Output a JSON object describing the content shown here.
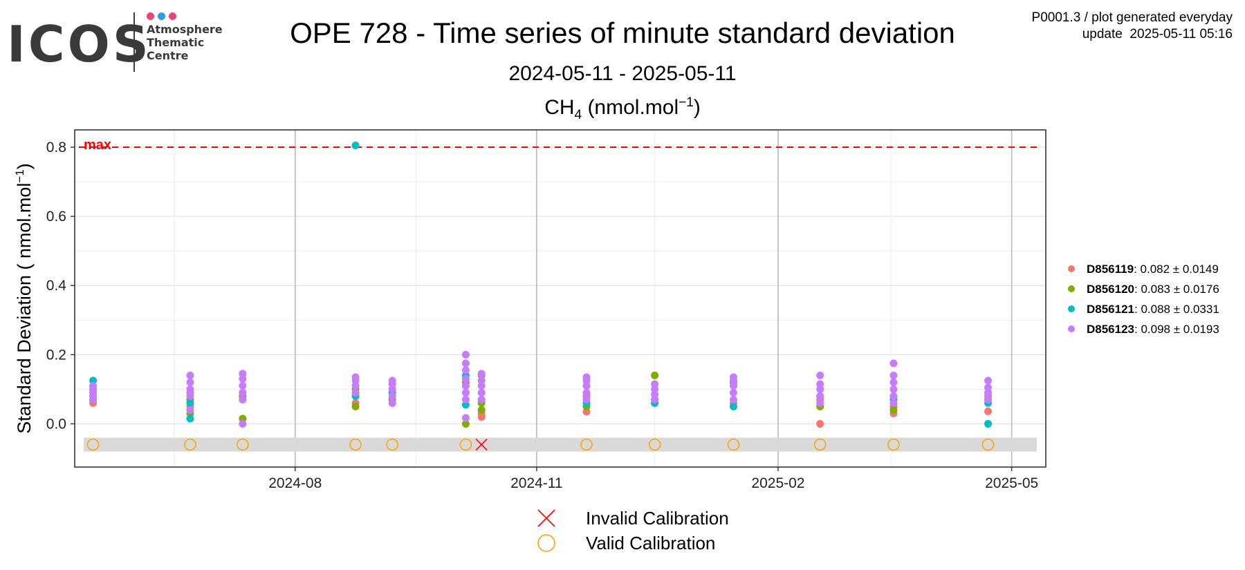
{
  "header": {
    "logo_text": "ICOS",
    "logo_subtitle": "Atmosphere\nThematic\nCentre",
    "logo_dot_colors": [
      "#e8457c",
      "#2f9ee0",
      "#e8457c"
    ],
    "title": "OPE 728 - Time series of minute standard deviation",
    "date_range": "2024-05-11 - 2025-05-11",
    "gas_name": "CH",
    "gas_subscript": "4",
    "gas_unit_pre": " (nmol.mol",
    "gas_unit_sup": "−1",
    "gas_unit_post": ")",
    "meta_line1": "P0001.3 / plot generated everyday",
    "meta_line2": "update  2025-05-11 05:16"
  },
  "chart_data": {
    "type": "scatter",
    "ylabel": "Standard Deviation ( nmol.mol",
    "ylabel_sup": "−1",
    "ylabel_post": ")",
    "ylim": [
      -0.125,
      0.85
    ],
    "xlim": [
      "2024-05-09",
      "2025-05-14"
    ],
    "y_ticks": [
      0.0,
      0.2,
      0.4,
      0.6,
      0.8
    ],
    "y_tick_labels": [
      "0.0",
      "0.2",
      "0.4",
      "0.6",
      "0.8"
    ],
    "x_major_ticks": [
      "2024-08-01",
      "2024-11-01",
      "2025-02-01",
      "2025-05-01"
    ],
    "x_tick_labels": [
      "2024-08",
      "2024-11",
      "2025-02",
      "2025-05"
    ],
    "x_minor_ticks": [
      "2024-06-16",
      "2024-09-16",
      "2024-12-16",
      "2025-03-16"
    ],
    "grid": true,
    "max_threshold": 0.8,
    "max_label": "max",
    "max_color": "#ff0000",
    "calibration_band": [
      -0.08,
      -0.04
    ],
    "calibration_y": -0.06,
    "series": [
      {
        "name": "D856119",
        "stats": ": 0.082 ± 0.0149",
        "color": "#F8766D",
        "points": [
          {
            "x": "2024-05-16",
            "y": 0.06
          },
          {
            "x": "2024-05-16",
            "y": 0.08
          },
          {
            "x": "2024-06-22",
            "y": 0.05
          },
          {
            "x": "2024-06-22",
            "y": 0.09
          },
          {
            "x": "2024-07-12",
            "y": 0.07
          },
          {
            "x": "2024-08-24",
            "y": 0.06
          },
          {
            "x": "2024-08-24",
            "y": 0.09
          },
          {
            "x": "2024-09-07",
            "y": 0.06
          },
          {
            "x": "2024-10-05",
            "y": 0.09
          },
          {
            "x": "2024-10-11",
            "y": 0.02
          },
          {
            "x": "2024-10-11",
            "y": 0.03
          },
          {
            "x": "2024-11-20",
            "y": 0.035
          },
          {
            "x": "2024-11-20",
            "y": 0.08
          },
          {
            "x": "2024-12-16",
            "y": 0.06
          },
          {
            "x": "2025-01-15",
            "y": 0.06
          },
          {
            "x": "2025-02-17",
            "y": 0.0
          },
          {
            "x": "2025-02-17",
            "y": 0.07
          },
          {
            "x": "2025-03-17",
            "y": 0.03
          },
          {
            "x": "2025-03-17",
            "y": 0.05
          },
          {
            "x": "2025-04-22",
            "y": 0.036
          },
          {
            "x": "2025-04-22",
            "y": 0.08
          }
        ]
      },
      {
        "name": "D856120",
        "stats": ": 0.083 ± 0.0176",
        "color": "#7CAE00",
        "points": [
          {
            "x": "2024-05-16",
            "y": 0.07
          },
          {
            "x": "2024-05-16",
            "y": 0.1
          },
          {
            "x": "2024-06-22",
            "y": 0.03
          },
          {
            "x": "2024-06-22",
            "y": 0.07
          },
          {
            "x": "2024-07-12",
            "y": 0.015
          },
          {
            "x": "2024-07-12",
            "y": 0.08
          },
          {
            "x": "2024-08-24",
            "y": 0.05
          },
          {
            "x": "2024-08-24",
            "y": 0.1
          },
          {
            "x": "2024-09-07",
            "y": 0.07
          },
          {
            "x": "2024-10-05",
            "y": 0.0
          },
          {
            "x": "2024-10-05",
            "y": 0.12
          },
          {
            "x": "2024-10-11",
            "y": 0.04
          },
          {
            "x": "2024-10-11",
            "y": 0.06
          },
          {
            "x": "2024-10-11",
            "y": 0.14
          },
          {
            "x": "2024-11-20",
            "y": 0.05
          },
          {
            "x": "2024-12-16",
            "y": 0.14
          },
          {
            "x": "2024-12-16",
            "y": 0.07
          },
          {
            "x": "2025-01-15",
            "y": 0.12
          },
          {
            "x": "2025-02-17",
            "y": 0.05
          },
          {
            "x": "2025-03-17",
            "y": 0.04
          },
          {
            "x": "2025-04-22",
            "y": 0.07
          }
        ]
      },
      {
        "name": "D856121",
        "stats": ": 0.088 ± 0.0331",
        "color": "#00BFC4",
        "points": [
          {
            "x": "2024-05-16",
            "y": 0.125
          },
          {
            "x": "2024-05-16",
            "y": 0.09
          },
          {
            "x": "2024-06-22",
            "y": 0.015
          },
          {
            "x": "2024-06-22",
            "y": 0.06
          },
          {
            "x": "2024-07-12",
            "y": 0.09
          },
          {
            "x": "2024-08-24",
            "y": 0.805
          },
          {
            "x": "2024-08-24",
            "y": 0.08
          },
          {
            "x": "2024-09-07",
            "y": 0.09
          },
          {
            "x": "2024-10-05",
            "y": 0.055
          },
          {
            "x": "2024-10-05",
            "y": 0.14
          },
          {
            "x": "2024-10-11",
            "y": 0.07
          },
          {
            "x": "2024-11-20",
            "y": 0.06
          },
          {
            "x": "2024-12-16",
            "y": 0.06
          },
          {
            "x": "2025-01-15",
            "y": 0.05
          },
          {
            "x": "2025-02-17",
            "y": 0.08
          },
          {
            "x": "2025-03-17",
            "y": 0.07
          },
          {
            "x": "2025-04-22",
            "y": 0.0
          },
          {
            "x": "2025-04-22",
            "y": 0.06
          }
        ]
      },
      {
        "name": "D856123",
        "stats": ": 0.098 ± 0.0193",
        "color": "#C77CFF",
        "points": [
          {
            "x": "2024-05-16",
            "y": 0.07
          },
          {
            "x": "2024-05-16",
            "y": 0.08
          },
          {
            "x": "2024-05-16",
            "y": 0.09
          },
          {
            "x": "2024-05-16",
            "y": 0.1
          },
          {
            "x": "2024-05-16",
            "y": 0.11
          },
          {
            "x": "2024-06-22",
            "y": 0.04
          },
          {
            "x": "2024-06-22",
            "y": 0.08
          },
          {
            "x": "2024-06-22",
            "y": 0.1
          },
          {
            "x": "2024-06-22",
            "y": 0.12
          },
          {
            "x": "2024-06-22",
            "y": 0.14
          },
          {
            "x": "2024-07-12",
            "y": 0.0
          },
          {
            "x": "2024-07-12",
            "y": 0.07
          },
          {
            "x": "2024-07-12",
            "y": 0.09
          },
          {
            "x": "2024-07-12",
            "y": 0.11
          },
          {
            "x": "2024-07-12",
            "y": 0.13
          },
          {
            "x": "2024-07-12",
            "y": 0.145
          },
          {
            "x": "2024-08-24",
            "y": 0.09
          },
          {
            "x": "2024-08-24",
            "y": 0.11
          },
          {
            "x": "2024-08-24",
            "y": 0.125
          },
          {
            "x": "2024-08-24",
            "y": 0.135
          },
          {
            "x": "2024-09-07",
            "y": 0.06
          },
          {
            "x": "2024-09-07",
            "y": 0.08
          },
          {
            "x": "2024-09-07",
            "y": 0.1
          },
          {
            "x": "2024-09-07",
            "y": 0.115
          },
          {
            "x": "2024-09-07",
            "y": 0.125
          },
          {
            "x": "2024-10-05",
            "y": 0.017
          },
          {
            "x": "2024-10-05",
            "y": 0.07
          },
          {
            "x": "2024-10-05",
            "y": 0.09
          },
          {
            "x": "2024-10-05",
            "y": 0.11
          },
          {
            "x": "2024-10-05",
            "y": 0.13
          },
          {
            "x": "2024-10-05",
            "y": 0.155
          },
          {
            "x": "2024-10-05",
            "y": 0.175
          },
          {
            "x": "2024-10-05",
            "y": 0.2
          },
          {
            "x": "2024-10-11",
            "y": 0.07
          },
          {
            "x": "2024-10-11",
            "y": 0.09
          },
          {
            "x": "2024-10-11",
            "y": 0.11
          },
          {
            "x": "2024-10-11",
            "y": 0.125
          },
          {
            "x": "2024-10-11",
            "y": 0.145
          },
          {
            "x": "2024-11-20",
            "y": 0.07
          },
          {
            "x": "2024-11-20",
            "y": 0.09
          },
          {
            "x": "2024-11-20",
            "y": 0.11
          },
          {
            "x": "2024-11-20",
            "y": 0.125
          },
          {
            "x": "2024-11-20",
            "y": 0.135
          },
          {
            "x": "2024-12-16",
            "y": 0.07
          },
          {
            "x": "2024-12-16",
            "y": 0.085
          },
          {
            "x": "2024-12-16",
            "y": 0.1
          },
          {
            "x": "2024-12-16",
            "y": 0.115
          },
          {
            "x": "2025-01-15",
            "y": 0.07
          },
          {
            "x": "2025-01-15",
            "y": 0.09
          },
          {
            "x": "2025-01-15",
            "y": 0.11
          },
          {
            "x": "2025-01-15",
            "y": 0.125
          },
          {
            "x": "2025-01-15",
            "y": 0.135
          },
          {
            "x": "2025-02-17",
            "y": 0.06
          },
          {
            "x": "2025-02-17",
            "y": 0.08
          },
          {
            "x": "2025-02-17",
            "y": 0.1
          },
          {
            "x": "2025-02-17",
            "y": 0.115
          },
          {
            "x": "2025-02-17",
            "y": 0.14
          },
          {
            "x": "2025-03-17",
            "y": 0.06
          },
          {
            "x": "2025-03-17",
            "y": 0.08
          },
          {
            "x": "2025-03-17",
            "y": 0.1
          },
          {
            "x": "2025-03-17",
            "y": 0.12
          },
          {
            "x": "2025-03-17",
            "y": 0.14
          },
          {
            "x": "2025-03-17",
            "y": 0.175
          },
          {
            "x": "2025-04-22",
            "y": 0.07
          },
          {
            "x": "2025-04-22",
            "y": 0.09
          },
          {
            "x": "2025-04-22",
            "y": 0.105
          },
          {
            "x": "2025-04-22",
            "y": 0.125
          }
        ]
      }
    ],
    "calibrations": {
      "valid": [
        "2024-05-16",
        "2024-06-22",
        "2024-07-12",
        "2024-08-24",
        "2024-09-07",
        "2024-10-05",
        "2024-11-20",
        "2024-12-16",
        "2025-01-15",
        "2025-02-17",
        "2025-03-17",
        "2025-04-22"
      ],
      "invalid": [
        "2024-10-11"
      ],
      "valid_color": "#FFA500",
      "invalid_color": "#FF0000"
    },
    "calibration_legend": [
      {
        "kind": "invalid",
        "label": "Invalid Calibration"
      },
      {
        "kind": "valid",
        "label": "Valid Calibration"
      }
    ]
  }
}
